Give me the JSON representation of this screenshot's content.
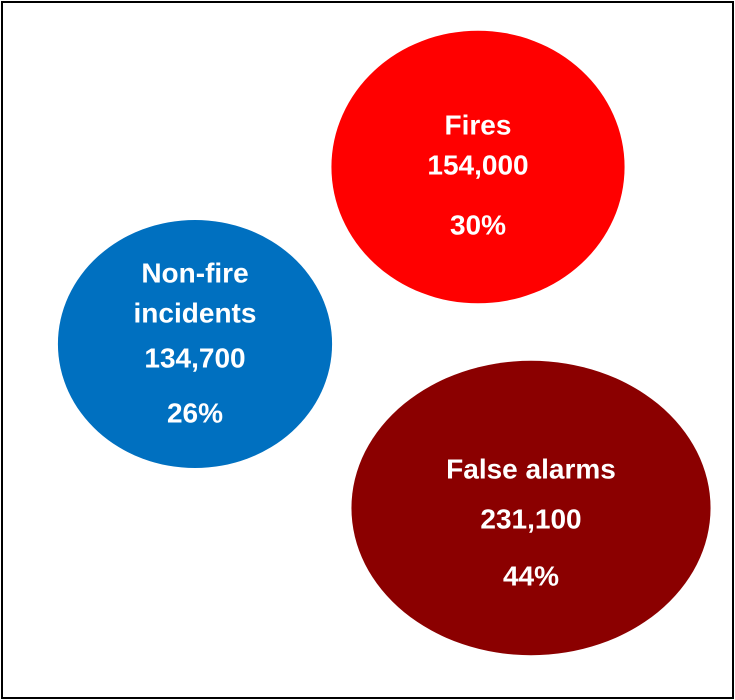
{
  "chart_data": {
    "type": "bubble",
    "categories": [
      [
        "Fires"
      ],
      [
        "Non-fire",
        "incidents"
      ],
      [
        "False alarms"
      ]
    ],
    "values": [
      154000,
      134700,
      231100
    ],
    "value_labels": [
      "154,000",
      "134,700",
      "231,100"
    ],
    "shares": [
      30,
      26,
      44
    ],
    "share_labels": [
      "30%",
      "26%",
      "44%"
    ],
    "colors": [
      "#ff0000",
      "#0070c0",
      "#8b0000"
    ]
  }
}
